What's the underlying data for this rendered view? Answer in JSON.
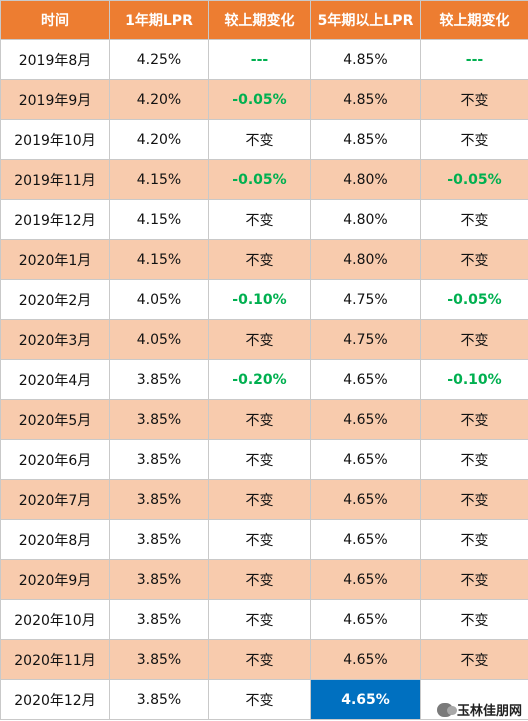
{
  "headers": [
    "时间",
    "1年期LPR",
    "较上期变化",
    "5年期以上LPR",
    "较上期变化"
  ],
  "rows": [
    {
      "time": "2019年8月",
      "lpr1y": "4.25%",
      "chg1y": "---",
      "lpr5y": "4.85%",
      "chg5y": "---"
    },
    {
      "time": "2019年9月",
      "lpr1y": "4.20%",
      "chg1y": "-0.05%",
      "lpr5y": "4.85%",
      "chg5y": "不变"
    },
    {
      "time": "2019年10月",
      "lpr1y": "4.20%",
      "chg1y": "不变",
      "lpr5y": "4.85%",
      "chg5y": "不变"
    },
    {
      "time": "2019年11月",
      "lpr1y": "4.15%",
      "chg1y": "-0.05%",
      "lpr5y": "4.80%",
      "chg5y": "-0.05%"
    },
    {
      "time": "2019年12月",
      "lpr1y": "4.15%",
      "chg1y": "不变",
      "lpr5y": "4.80%",
      "chg5y": "不变"
    },
    {
      "time": "2020年1月",
      "lpr1y": "4.15%",
      "chg1y": "不变",
      "lpr5y": "4.80%",
      "chg5y": "不变"
    },
    {
      "time": "2020年2月",
      "lpr1y": "4.05%",
      "chg1y": "-0.10%",
      "lpr5y": "4.75%",
      "chg5y": "-0.05%"
    },
    {
      "time": "2020年3月",
      "lpr1y": "4.05%",
      "chg1y": "不变",
      "lpr5y": "4.75%",
      "chg5y": "不变"
    },
    {
      "time": "2020年4月",
      "lpr1y": "3.85%",
      "chg1y": "-0.20%",
      "lpr5y": "4.65%",
      "chg5y": "-0.10%"
    },
    {
      "time": "2020年5月",
      "lpr1y": "3.85%",
      "chg1y": "不变",
      "lpr5y": "4.65%",
      "chg5y": "不变"
    },
    {
      "time": "2020年6月",
      "lpr1y": "3.85%",
      "chg1y": "不变",
      "lpr5y": "4.65%",
      "chg5y": "不变"
    },
    {
      "time": "2020年7月",
      "lpr1y": "3.85%",
      "chg1y": "不变",
      "lpr5y": "4.65%",
      "chg5y": "不变"
    },
    {
      "time": "2020年8月",
      "lpr1y": "3.85%",
      "chg1y": "不变",
      "lpr5y": "4.65%",
      "chg5y": "不变"
    },
    {
      "time": "2020年9月",
      "lpr1y": "3.85%",
      "chg1y": "不变",
      "lpr5y": "4.65%",
      "chg5y": "不变"
    },
    {
      "time": "2020年10月",
      "lpr1y": "3.85%",
      "chg1y": "不变",
      "lpr5y": "4.65%",
      "chg5y": "不变"
    },
    {
      "time": "2020年11月",
      "lpr1y": "3.85%",
      "chg1y": "不变",
      "lpr5y": "4.65%",
      "chg5y": "不变"
    },
    {
      "time": "2020年12月",
      "lpr1y": "3.85%",
      "chg1y": "不变",
      "lpr5y": "4.65%",
      "chg5y": ""
    }
  ],
  "watermark": "玉林佳朋网",
  "colors": {
    "header_bg": "#ed7d31",
    "stripe_bg": "#f8cbad",
    "decrease": "#00b050",
    "highlight_bg": "#0070c0"
  }
}
